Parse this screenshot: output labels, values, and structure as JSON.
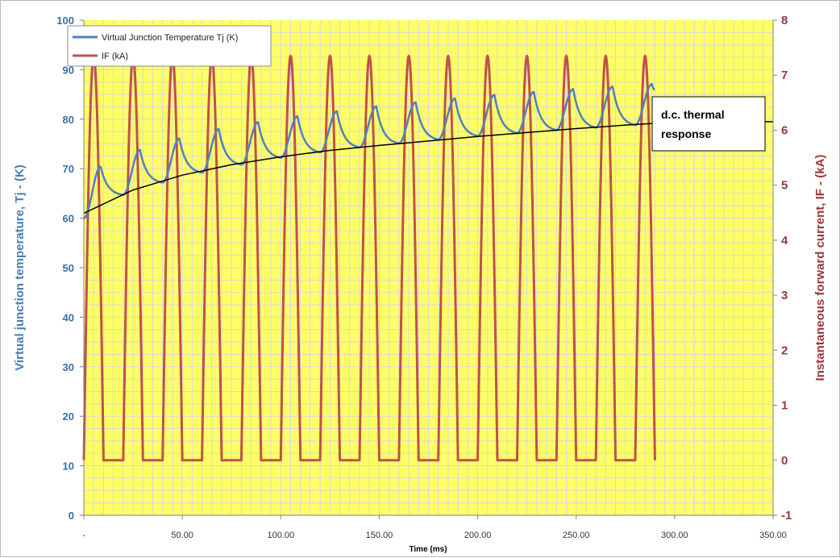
{
  "chart_data": {
    "type": "line",
    "xlabel": "Time (ms)",
    "ylabel": "Virtual junction temperature, Tj - (K)",
    "y2label": "Instantaneous forward current, IF - (kA)",
    "xlim": [
      0,
      350
    ],
    "ylim": [
      0,
      100
    ],
    "y2lim": [
      -1,
      8
    ],
    "x_ticks": [
      "-",
      "50.00",
      "100.00",
      "150.00",
      "200.00",
      "250.00",
      "300.00",
      "350.00"
    ],
    "y_ticks": [
      "0",
      "10",
      "20",
      "30",
      "40",
      "50",
      "60",
      "70",
      "80",
      "90",
      "100"
    ],
    "y2_ticks": [
      "-1",
      "0",
      "1",
      "2",
      "3",
      "4",
      "5",
      "6",
      "7",
      "8"
    ],
    "grid": true,
    "legend_position": "top-left",
    "colors": {
      "tj": "#4f81bd",
      "if": "#c0504d",
      "dc": "#000000",
      "plot_bg": "#ffff66",
      "grid": "#d8d8d8"
    },
    "series": [
      {
        "name": "Virtual Junction Temperature Tj (K)",
        "axis": "left",
        "x": [
          0,
          8.5,
          20,
          28.5,
          40,
          48.5,
          60,
          68.5,
          80,
          88.5,
          100,
          108.5,
          120,
          128.5,
          140,
          148.5,
          160,
          168.5,
          180,
          188.5,
          200,
          208.5,
          220,
          228.5,
          240,
          248.5,
          260,
          268.5,
          280,
          288.5,
          290
        ],
        "values": [
          60,
          70.4,
          64.7,
          73.8,
          67.2,
          76.1,
          69.2,
          78,
          70.8,
          79.4,
          72.2,
          80.6,
          73.3,
          81.6,
          74.3,
          82.6,
          75.1,
          83.4,
          75.9,
          84.2,
          76.6,
          84.9,
          77.2,
          85.5,
          77.8,
          86.1,
          78.3,
          86.6,
          78.8,
          87.1,
          86
        ]
      },
      {
        "name": "IF (kA)",
        "axis": "right",
        "period_ms": 20,
        "conduction_ms": 10,
        "peak": 7.35,
        "x_end": 290
      },
      {
        "axis": "left",
        "x": [
          0,
          25,
          50,
          75,
          100,
          125,
          150,
          175,
          200,
          225,
          250,
          275,
          300,
          350
        ],
        "values": [
          61,
          65.7,
          68.7,
          70.8,
          72.4,
          73.7,
          74.7,
          75.6,
          76.5,
          77.3,
          78.1,
          78.8,
          79.4,
          79.5
        ]
      }
    ],
    "annotation": {
      "text_line1": "d.c. thermal",
      "text_line2": "response"
    }
  }
}
